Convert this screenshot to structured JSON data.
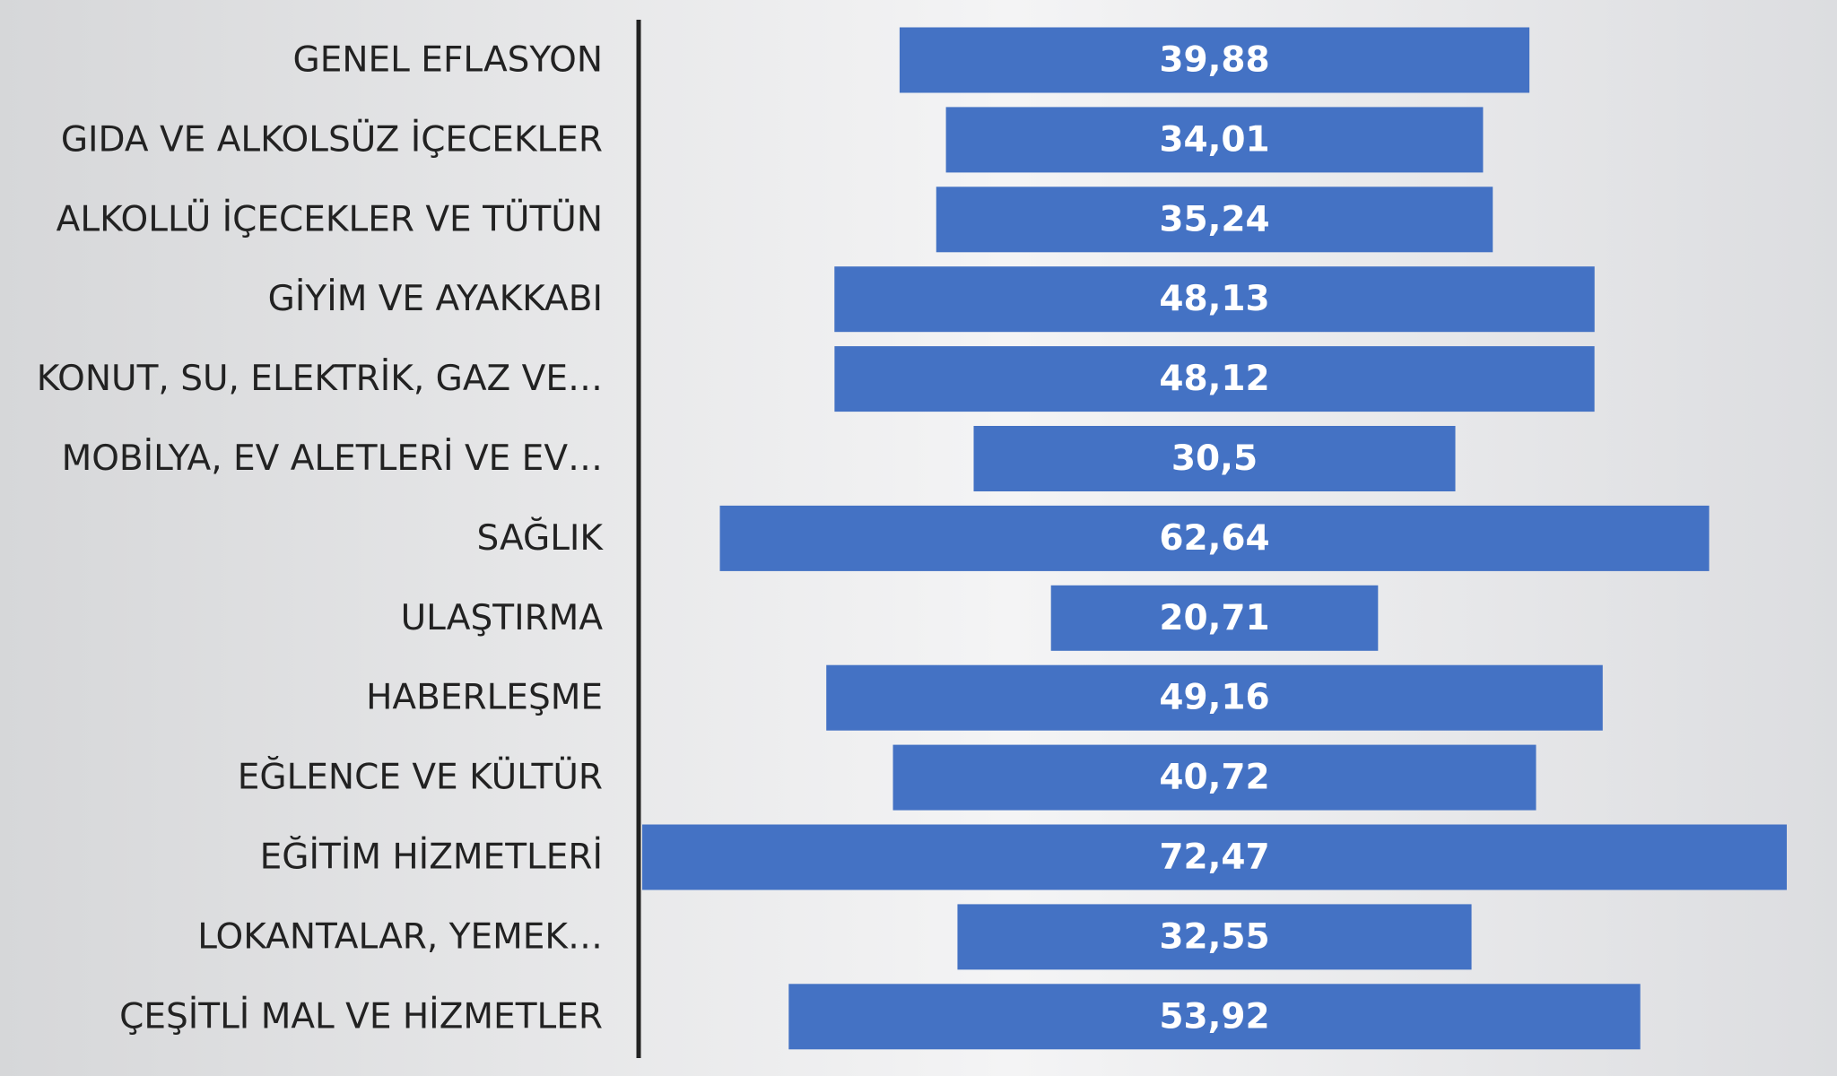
{
  "chart_data": {
    "type": "funnel",
    "categories": [
      "GENEL EFLASYON",
      "GIDA VE ALKOLSÜZ İÇECEKLER",
      "ALKOLLÜ İÇECEKLER VE TÜTÜN",
      "GİYİM VE AYAKKABI",
      "KONUT, SU, ELEKTRİK, GAZ VE…",
      "MOBİLYA, EV ALETLERİ VE EV…",
      "SAĞLIK",
      "ULAŞTIRMA",
      "HABERLEŞME",
      "EĞLENCE VE KÜLTÜR",
      "EĞİTİM HİZMETLERİ",
      "LOKANTALAR, YEMEK…",
      "ÇEŞİTLİ MAL VE HİZMETLER"
    ],
    "values": [
      39.88,
      34.01,
      35.24,
      48.13,
      48.12,
      30.5,
      62.64,
      20.71,
      49.16,
      40.72,
      72.47,
      32.55,
      53.92
    ],
    "value_labels": [
      "39,88",
      "34,01",
      "35,24",
      "48,13",
      "48,12",
      "30,5",
      "62,64",
      "20,71",
      "49,16",
      "40,72",
      "72,47",
      "32,55",
      "53,92"
    ],
    "color": "#4472c4"
  }
}
